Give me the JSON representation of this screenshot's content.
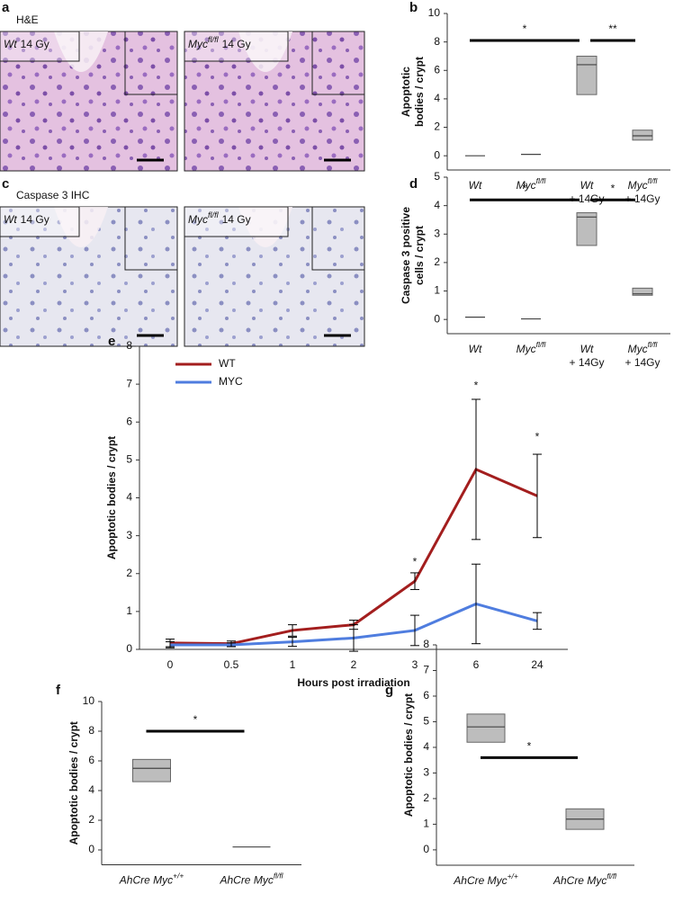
{
  "image_panels": [
    {
      "letter": "a",
      "title": "H&E",
      "images": [
        {
          "name": "Wt",
          "rest": "14 Gy"
        },
        {
          "name": "Myc",
          "sup": "fl/fl",
          "rest": "14 Gy"
        }
      ]
    },
    {
      "letter": "c",
      "title": "Caspase 3 IHC",
      "images": [
        {
          "name": "Wt",
          "rest": "14 Gy"
        },
        {
          "name": "Myc",
          "sup": "fl/fl",
          "rest": "14 Gy"
        }
      ]
    }
  ],
  "chart_data": [
    {
      "type": "box",
      "letter": "b",
      "ylabel": [
        "Apoptotic",
        "bodies / crypt"
      ],
      "categories": [
        {
          "name": "Wt"
        },
        {
          "name": "Myc",
          "sup": "fl/fl"
        },
        {
          "name": "Wt",
          "line2": "+ 14Gy"
        },
        {
          "name": "Myc",
          "sup": "fl/fl",
          "line2": "+ 14Gy"
        }
      ],
      "boxes": [
        {
          "q1": 0,
          "median": 0,
          "q3": 0
        },
        {
          "q1": 0.1,
          "median": 0.1,
          "q3": 0.1
        },
        {
          "q1": 4.3,
          "median": 6.4,
          "q3": 7.0
        },
        {
          "q1": 1.1,
          "median": 1.4,
          "q3": 1.8
        }
      ],
      "significance": [
        {
          "from": 0,
          "to": 2,
          "y": 8.1,
          "label": "*"
        },
        {
          "from": 2,
          "to": 3,
          "y": 8.1,
          "label": "**"
        }
      ],
      "color": "#bdbdbd",
      "ylim": [
        -1,
        10
      ],
      "yticks": [
        0,
        2,
        4,
        6,
        8,
        10
      ]
    },
    {
      "type": "box",
      "letter": "d",
      "ylabel": [
        "Caspase 3 positive",
        "cells / crypt"
      ],
      "categories": [
        {
          "name": "Wt"
        },
        {
          "name": "Myc",
          "sup": "fl/fl"
        },
        {
          "name": "Wt",
          "line2": "+ 14Gy"
        },
        {
          "name": "Myc",
          "sup": "fl/fl",
          "line2": "+ 14Gy"
        }
      ],
      "boxes": [
        {
          "q1": 0.08,
          "median": 0.08,
          "q3": 0.08
        },
        {
          "q1": 0.02,
          "median": 0.02,
          "q3": 0.02
        },
        {
          "q1": 2.6,
          "median": 3.6,
          "q3": 3.75
        },
        {
          "q1": 0.85,
          "median": 0.9,
          "q3": 1.1
        }
      ],
      "significance": [
        {
          "from": 0,
          "to": 2,
          "y": 4.2,
          "label": "*"
        },
        {
          "from": 2,
          "to": 3,
          "y": 4.2,
          "label": "*"
        }
      ],
      "color": "#bdbdbd",
      "ylim": [
        -0.5,
        5
      ],
      "yticks": [
        0,
        1,
        2,
        3,
        4,
        5
      ]
    },
    {
      "type": "line",
      "letter": "e",
      "ylabel": [
        "Apoptotic bodies / crypt"
      ],
      "xlabel": "Hours post irradiation",
      "categories": [
        "0",
        "0.5",
        "1",
        "2",
        "3",
        "6",
        "24"
      ],
      "series": [
        {
          "name": "WT",
          "color": "#a31e1e",
          "values": [
            0.17,
            0.15,
            0.5,
            0.65,
            1.8,
            4.75,
            4.05
          ],
          "errors": [
            0.1,
            0.07,
            0.15,
            0.12,
            0.22,
            1.85,
            1.1
          ]
        },
        {
          "name": "MYC",
          "color": "#4f7ddf",
          "values": [
            0.12,
            0.12,
            0.2,
            0.3,
            0.5,
            1.2,
            0.75
          ],
          "errors": [
            0.08,
            0.05,
            0.12,
            0.35,
            0.4,
            1.05,
            0.22
          ]
        }
      ],
      "annotations": [
        {
          "x": "3",
          "y": 2.3,
          "label": "*"
        },
        {
          "x": "6",
          "y": 6.95,
          "label": "*"
        },
        {
          "x": "24",
          "y": 5.6,
          "label": "*"
        }
      ],
      "ylim": [
        0,
        8
      ],
      "yticks": [
        0,
        1,
        2,
        3,
        4,
        5,
        6,
        7,
        8
      ]
    },
    {
      "type": "box",
      "letter": "f",
      "ylabel": [
        "Apoptotic bodies / crypt"
      ],
      "categories": [
        {
          "name": "AhCre Myc",
          "sup": "+/+"
        },
        {
          "name": "AhCre Myc",
          "sup": "fl/fl"
        }
      ],
      "boxes": [
        {
          "q1": 4.6,
          "median": 5.5,
          "q3": 6.1
        },
        {
          "q1": 0.2,
          "median": 0.2,
          "q3": 0.2
        }
      ],
      "significance": [
        {
          "from": 0,
          "to": 1,
          "y": 8,
          "label": "*"
        }
      ],
      "color": "#bdbdbd",
      "ylim": [
        -1,
        10
      ],
      "yticks": [
        0,
        2,
        4,
        6,
        8,
        10
      ]
    },
    {
      "type": "box",
      "letter": "g",
      "ylabel": [
        "Apoptotic bodies / crypt"
      ],
      "categories": [
        {
          "name": "AhCre Myc",
          "sup": "+/+"
        },
        {
          "name": "AhCre Myc",
          "sup": "fl/fl"
        }
      ],
      "boxes": [
        {
          "q1": 4.2,
          "median": 4.8,
          "q3": 5.3
        },
        {
          "q1": 0.8,
          "median": 1.2,
          "q3": 1.6
        }
      ],
      "significance": [
        {
          "from": 0,
          "to": 1,
          "y": 3.6,
          "label": "*"
        }
      ],
      "color": "#bdbdbd",
      "ylim": [
        -0.6,
        8
      ],
      "yticks": [
        0,
        1,
        2,
        3,
        4,
        5,
        6,
        7,
        8
      ]
    }
  ]
}
